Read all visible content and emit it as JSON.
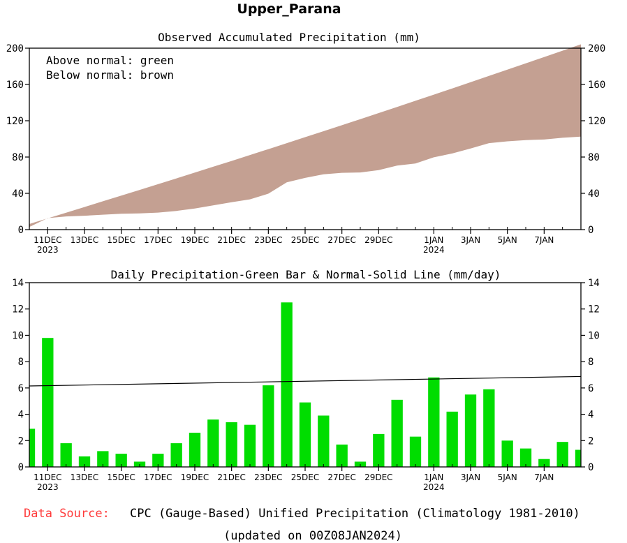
{
  "title": "Upper_Parana",
  "chart_data": [
    {
      "type": "area",
      "title": "Observed Accumulated Precipitation (mm)",
      "legend": [
        "Above normal: green",
        "Below normal: brown"
      ],
      "colors": {
        "above": "#00dd00",
        "below": "#c4a092"
      },
      "ylim": [
        0,
        200
      ],
      "yticks": [
        0,
        40,
        80,
        120,
        160,
        200
      ],
      "x_days": [
        0,
        1,
        2,
        3,
        4,
        5,
        6,
        7,
        8,
        9,
        10,
        11,
        12,
        13,
        14,
        15,
        16,
        17,
        18,
        19,
        20,
        21,
        22,
        23,
        24,
        25,
        26,
        27,
        28,
        29,
        30
      ],
      "observed": [
        2.9,
        12.7,
        14.5,
        15.3,
        16.5,
        17.5,
        17.9,
        18.8,
        20.6,
        23.2,
        26.8,
        30.2,
        33.4,
        39.6,
        52.1,
        57.0,
        60.9,
        62.6,
        63.0,
        65.5,
        70.6,
        72.9,
        79.7,
        83.9,
        89.4,
        95.3,
        97.3,
        98.7,
        99.3,
        101.2,
        102.5
      ],
      "normal": [
        6.2,
        12.4,
        18.7,
        24.9,
        31.2,
        37.5,
        43.8,
        50.1,
        56.5,
        62.9,
        69.3,
        75.7,
        82.2,
        88.7,
        95.3,
        101.9,
        108.5,
        115.1,
        121.8,
        128.5,
        135.2,
        142.0,
        148.8,
        155.6,
        162.5,
        169.4,
        176.3,
        183.2,
        190.2,
        197.2,
        204.2
      ]
    },
    {
      "type": "bar",
      "title": "Daily Precipitation-Green Bar & Normal-Solid Line (mm/day)",
      "ylim": [
        0,
        14
      ],
      "yticks": [
        0,
        2,
        4,
        6,
        8,
        10,
        12,
        14
      ],
      "bar_color": "#00dd00",
      "x_days": [
        0,
        1,
        2,
        3,
        4,
        5,
        6,
        7,
        8,
        9,
        10,
        11,
        12,
        13,
        14,
        15,
        16,
        17,
        18,
        19,
        20,
        21,
        22,
        23,
        24,
        25,
        26,
        27,
        28,
        29,
        30
      ],
      "values": [
        2.9,
        9.8,
        1.8,
        0.8,
        1.2,
        1.0,
        0.4,
        1.0,
        1.8,
        2.6,
        3.6,
        3.4,
        3.2,
        6.2,
        12.5,
        4.9,
        3.9,
        1.7,
        0.4,
        2.5,
        5.1,
        2.3,
        6.8,
        4.2,
        5.5,
        5.9,
        2.0,
        1.4,
        0.6,
        1.9,
        1.3
      ],
      "normal_line": [
        6.15,
        6.87
      ]
    }
  ],
  "x_axis": {
    "range_days": [
      0,
      30
    ],
    "labels": [
      {
        "day": 1,
        "text": "11DEC",
        "year": "2023"
      },
      {
        "day": 3,
        "text": "13DEC",
        "year": ""
      },
      {
        "day": 5,
        "text": "15DEC",
        "year": ""
      },
      {
        "day": 7,
        "text": "17DEC",
        "year": ""
      },
      {
        "day": 9,
        "text": "19DEC",
        "year": ""
      },
      {
        "day": 11,
        "text": "21DEC",
        "year": ""
      },
      {
        "day": 13,
        "text": "23DEC",
        "year": ""
      },
      {
        "day": 15,
        "text": "25DEC",
        "year": ""
      },
      {
        "day": 17,
        "text": "27DEC",
        "year": ""
      },
      {
        "day": 19,
        "text": "29DEC",
        "year": ""
      },
      {
        "day": 22,
        "text": "1JAN",
        "year": "2024"
      },
      {
        "day": 24,
        "text": "3JAN",
        "year": ""
      },
      {
        "day": 26,
        "text": "5JAN",
        "year": ""
      },
      {
        "day": 28,
        "text": "7JAN",
        "year": ""
      }
    ]
  },
  "footer": {
    "source_label": "Data Source:",
    "source_text": "CPC (Gauge-Based) Unified Precipitation (Climatology 1981-2010)",
    "updated": "(updated on 00Z08JAN2024)",
    "label_color": "#ff3b3b"
  }
}
